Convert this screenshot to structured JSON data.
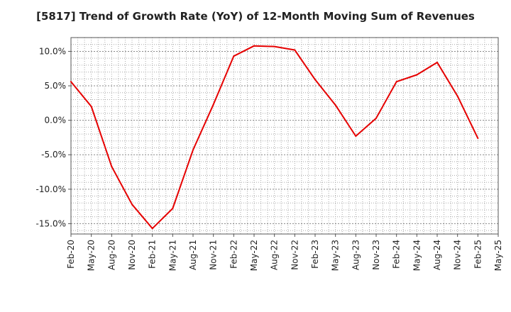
{
  "chart_data": {
    "type": "line",
    "title": "[5817]  Trend of Growth Rate (YoY) of 12-Month Moving Sum of Revenues",
    "xlabel": "",
    "ylabel": "",
    "x": [
      "Feb-20",
      "May-20",
      "Aug-20",
      "Nov-20",
      "Feb-21",
      "May-21",
      "Aug-21",
      "Nov-21",
      "Feb-22",
      "May-22",
      "Aug-22",
      "Nov-22",
      "Feb-23",
      "May-23",
      "Aug-23",
      "Nov-23",
      "Feb-24",
      "May-24",
      "Aug-24",
      "Nov-24",
      "Feb-25"
    ],
    "x_ticks": [
      "Feb-20",
      "May-20",
      "Aug-20",
      "Nov-20",
      "Feb-21",
      "May-21",
      "Aug-21",
      "Nov-21",
      "Feb-22",
      "May-22",
      "Aug-22",
      "Nov-22",
      "Feb-23",
      "May-23",
      "Aug-23",
      "Nov-23",
      "Feb-24",
      "May-24",
      "Aug-24",
      "Nov-24",
      "Feb-25",
      "May-25"
    ],
    "series": [
      {
        "color": "#e60000",
        "values": [
          5.6,
          2.0,
          -6.7,
          -12.2,
          -15.7,
          -12.8,
          -4.3,
          2.3,
          9.3,
          10.8,
          10.7,
          10.2,
          5.9,
          2.2,
          -2.3,
          0.3,
          5.6,
          6.6,
          8.4,
          3.5,
          -2.6
        ]
      }
    ],
    "ylim": [
      -16.5,
      12.0
    ],
    "y_ticks": [
      10,
      5,
      0,
      -5,
      -10,
      -15
    ],
    "y_tick_labels": [
      "10.0%",
      "5.0%",
      "0.0%",
      "-5.0%",
      "-10.0%",
      "-15.0%"
    ],
    "grid": true,
    "colors": {
      "line": "#e60000",
      "grid": "#aaaaaa",
      "axis": "#555555"
    }
  }
}
